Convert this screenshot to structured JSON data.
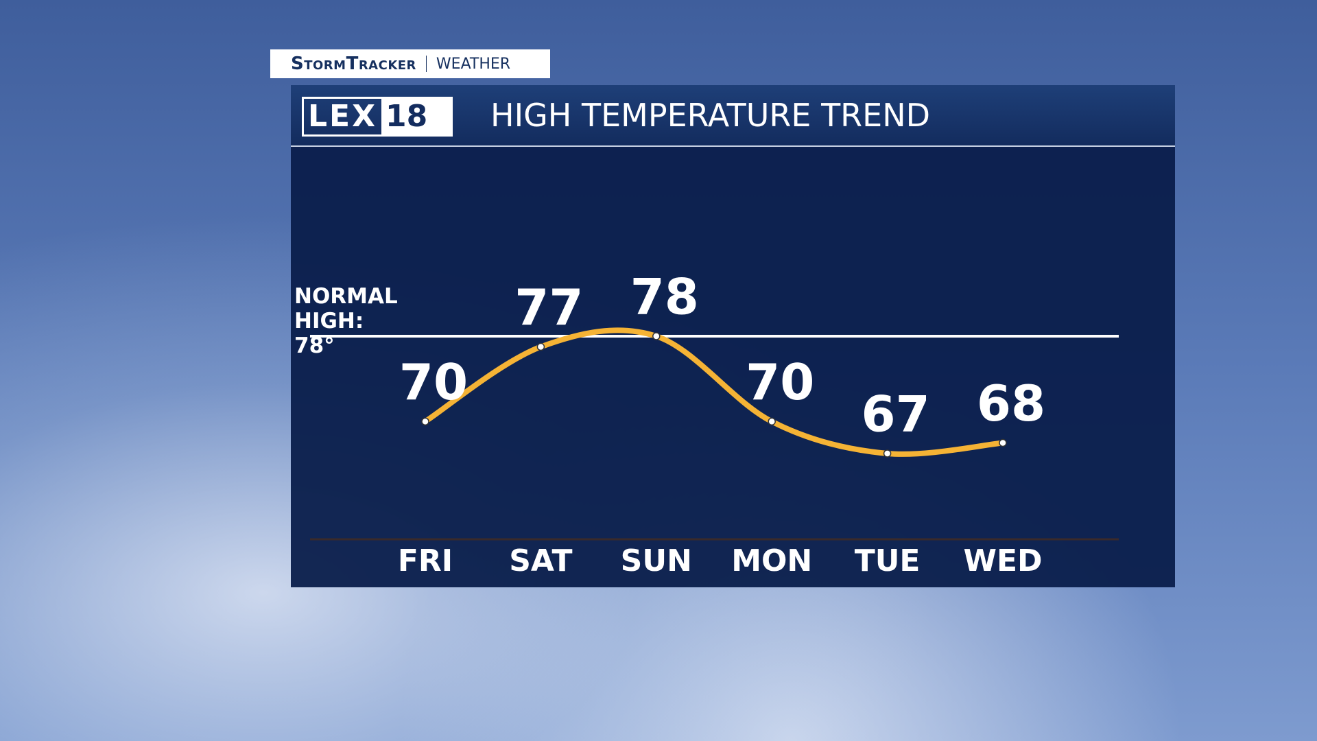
{
  "header": {
    "brand": "StormTracker",
    "section": "WEATHER",
    "logo_left": "LEX",
    "logo_right": "18"
  },
  "chart_data": {
    "type": "line",
    "title": "HIGH TEMPERATURE TREND",
    "categories": [
      "FRI",
      "SAT",
      "SUN",
      "MON",
      "TUE",
      "WED"
    ],
    "values": [
      70,
      77,
      78,
      70,
      67,
      68
    ],
    "color": "#f5b335",
    "reference": {
      "label": "NORMAL HIGH: 78°",
      "value": 78
    }
  }
}
